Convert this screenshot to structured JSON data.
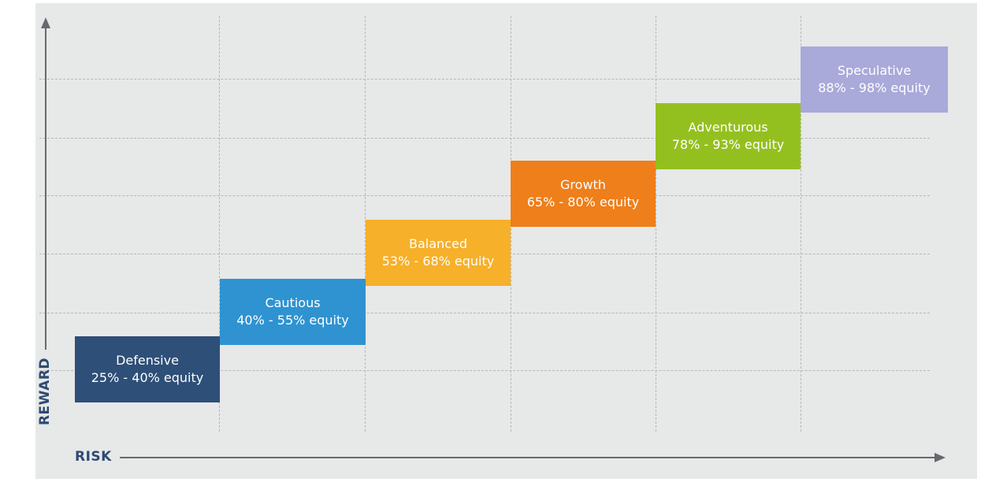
{
  "axes": {
    "y_label": "REWARD",
    "x_label": "RISK"
  },
  "profiles": [
    {
      "name": "Defensive",
      "range": "25% - 40% equity",
      "color": "#2e4f77"
    },
    {
      "name": "Cautious",
      "range": "40% - 55% equity",
      "color": "#2f93d1"
    },
    {
      "name": "Balanced",
      "range": "53% - 68% equity",
      "color": "#f6b02a"
    },
    {
      "name": "Growth",
      "range": "65% - 80% equity",
      "color": "#ee7f1a"
    },
    {
      "name": "Adventurous",
      "range": "78% - 93% equity",
      "color": "#94c01f"
    },
    {
      "name": "Speculative",
      "range": "88% - 98% equity",
      "color": "#a9a9da"
    }
  ]
}
